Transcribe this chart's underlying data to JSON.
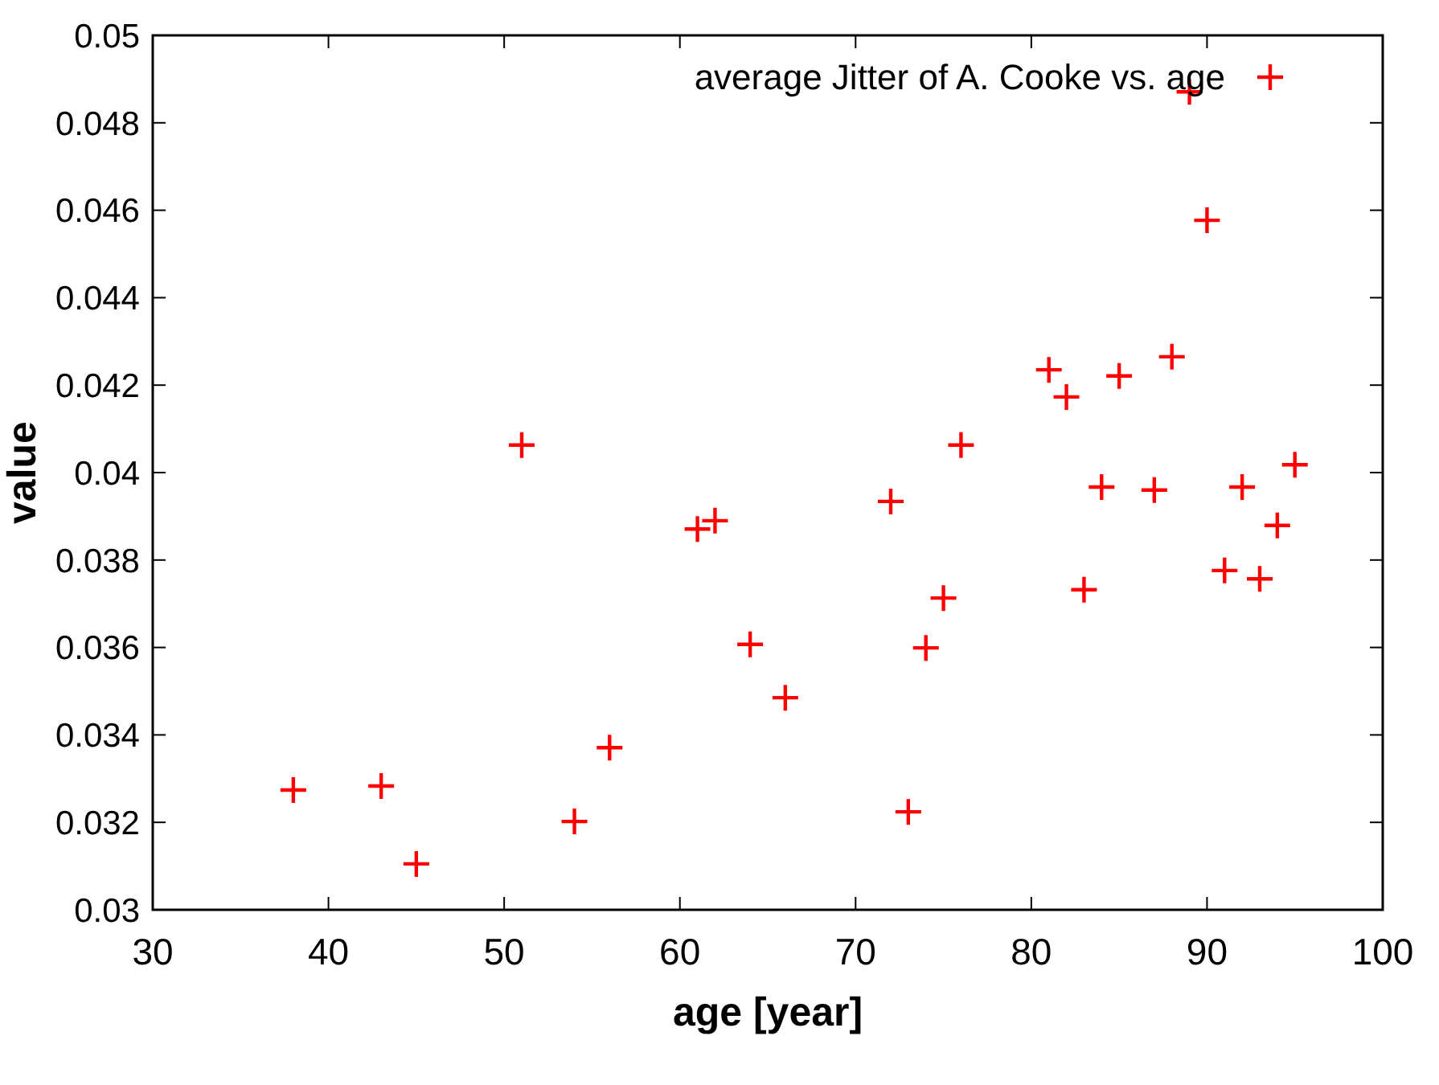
{
  "chart_data": {
    "type": "scatter",
    "xlabel": "age [year]",
    "ylabel": "value",
    "x": [
      38,
      43,
      45,
      51,
      54,
      56,
      61,
      62,
      64,
      66,
      72,
      73,
      74,
      75,
      76,
      81,
      82,
      83,
      84,
      85,
      87,
      88,
      89,
      90,
      91,
      92,
      93,
      94,
      95
    ],
    "series": [
      {
        "name": "average Jitter of A. Cooke vs. age",
        "color": "#ff0000",
        "values": [
          0.03274,
          0.03283,
          0.03105,
          0.04063,
          0.03202,
          0.03371,
          0.03871,
          0.0389,
          0.03607,
          0.03485,
          0.03934,
          0.03224,
          0.03599,
          0.03713,
          0.04063,
          0.04235,
          0.04173,
          0.03732,
          0.03967,
          0.04221,
          0.0396,
          0.04265,
          0.04871,
          0.04577,
          0.03776,
          0.03967,
          0.03757,
          0.03879,
          0.04018
        ]
      }
    ],
    "xlim": [
      30,
      100
    ],
    "xticks": [
      30,
      40,
      50,
      60,
      70,
      80,
      90,
      100
    ],
    "ylim": [
      0.03,
      0.05
    ],
    "yticks": [
      0.03,
      0.032,
      0.034,
      0.036,
      0.038,
      0.04,
      0.042,
      0.044,
      0.046,
      0.048,
      0.05
    ],
    "marker": "cross",
    "legend": "top right",
    "grid": false
  }
}
